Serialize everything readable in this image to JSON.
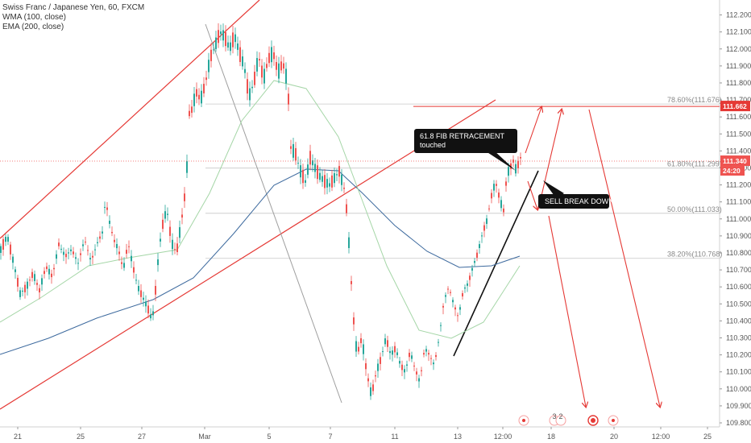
{
  "chart_data": {
    "type": "candlestick",
    "title": "Swiss Franc / Japanese Yen, 60, FXCM",
    "indicators": [
      "WMA (100, close)",
      "EMA (200, close)"
    ],
    "ylim": [
      109.8,
      112.25
    ],
    "y_ticks": [
      "109.800",
      "109.900",
      "110.000",
      "110.100",
      "110.200",
      "110.300",
      "110.400",
      "110.500",
      "110.600",
      "110.700",
      "110.800",
      "110.900",
      "111.000",
      "111.100",
      "111.200",
      "111.300",
      "111.400",
      "111.500",
      "111.600",
      "111.700",
      "111.800",
      "111.900",
      "112.000",
      "112.100",
      "112.200"
    ],
    "x_ticks": [
      "21",
      "25",
      "27",
      "Mar",
      "5",
      "7",
      "11",
      "13",
      "12:00",
      "18",
      "20",
      "12:00",
      "25"
    ],
    "price_tags": {
      "resistance": "111.662",
      "current": "111.340",
      "countdown": "24:20"
    },
    "fib_levels": [
      {
        "label": "78.60%(111.676)",
        "value": 111.676
      },
      {
        "label": "61.80%(111.299)",
        "value": 111.299
      },
      {
        "label": "50.00%(111.033)",
        "value": 111.033
      },
      {
        "label": "38.20%(110.768)",
        "value": 110.768
      }
    ],
    "annotations": {
      "fib_callout": [
        "61.8 FIB RETRACEMENT",
        "touched"
      ],
      "sell_callout": "SELL BREAK DOWN",
      "event_labels": [
        "3",
        "2"
      ]
    },
    "price_path": [
      [
        0,
        110.82
      ],
      [
        8,
        110.9
      ],
      [
        16,
        110.74
      ],
      [
        24,
        110.56
      ],
      [
        32,
        110.6
      ],
      [
        40,
        110.68
      ],
      [
        48,
        110.58
      ],
      [
        56,
        110.72
      ],
      [
        64,
        110.66
      ],
      [
        72,
        110.85
      ],
      [
        80,
        110.78
      ],
      [
        88,
        110.82
      ],
      [
        96,
        110.74
      ],
      [
        104,
        110.88
      ],
      [
        112,
        110.75
      ],
      [
        120,
        110.86
      ],
      [
        126,
        110.92
      ],
      [
        130,
        111.12
      ],
      [
        134,
        111.0
      ],
      [
        140,
        110.88
      ],
      [
        146,
        110.82
      ],
      [
        152,
        110.7
      ],
      [
        158,
        110.86
      ],
      [
        164,
        110.72
      ],
      [
        170,
        110.6
      ],
      [
        176,
        110.54
      ],
      [
        182,
        110.48
      ],
      [
        188,
        110.4
      ],
      [
        192,
        110.58
      ],
      [
        196,
        110.8
      ],
      [
        200,
        110.95
      ],
      [
        206,
        111.06
      ],
      [
        212,
        110.86
      ],
      [
        218,
        110.8
      ],
      [
        224,
        110.98
      ],
      [
        230,
        111.2
      ],
      [
        234,
        111.62
      ],
      [
        238,
        111.65
      ],
      [
        242,
        111.75
      ],
      [
        248,
        111.7
      ],
      [
        254,
        111.8
      ],
      [
        260,
        111.95
      ],
      [
        266,
        112.02
      ],
      [
        272,
        112.1
      ],
      [
        278,
        112.07
      ],
      [
        284,
        112.0
      ],
      [
        290,
        112.08
      ],
      [
        296,
        111.98
      ],
      [
        302,
        111.9
      ],
      [
        308,
        111.72
      ],
      [
        314,
        111.8
      ],
      [
        320,
        111.96
      ],
      [
        326,
        111.82
      ],
      [
        332,
        111.94
      ],
      [
        338,
        111.98
      ],
      [
        344,
        111.86
      ],
      [
        350,
        111.92
      ],
      [
        356,
        111.8
      ],
      [
        360,
        111.42
      ],
      [
        366,
        111.38
      ],
      [
        372,
        111.28
      ],
      [
        378,
        111.22
      ],
      [
        384,
        111.36
      ],
      [
        390,
        111.3
      ],
      [
        396,
        111.25
      ],
      [
        402,
        111.22
      ],
      [
        408,
        111.2
      ],
      [
        414,
        111.24
      ],
      [
        420,
        111.28
      ],
      [
        426,
        111.18
      ],
      [
        430,
        111.02
      ],
      [
        434,
        110.7
      ],
      [
        438,
        110.4
      ],
      [
        442,
        110.2
      ],
      [
        448,
        110.3
      ],
      [
        454,
        110.1
      ],
      [
        460,
        109.96
      ],
      [
        466,
        110.1
      ],
      [
        472,
        110.18
      ],
      [
        478,
        110.3
      ],
      [
        484,
        110.2
      ],
      [
        490,
        110.24
      ],
      [
        496,
        110.14
      ],
      [
        502,
        110.1
      ],
      [
        508,
        110.22
      ],
      [
        514,
        110.12
      ],
      [
        520,
        110.04
      ],
      [
        526,
        110.24
      ],
      [
        532,
        110.2
      ],
      [
        538,
        110.14
      ],
      [
        544,
        110.3
      ],
      [
        550,
        110.52
      ],
      [
        556,
        110.6
      ],
      [
        562,
        110.5
      ],
      [
        568,
        110.42
      ],
      [
        574,
        110.58
      ],
      [
        580,
        110.62
      ],
      [
        586,
        110.72
      ],
      [
        592,
        110.8
      ],
      [
        598,
        110.92
      ],
      [
        604,
        111.0
      ],
      [
        608,
        111.12
      ],
      [
        614,
        111.22
      ],
      [
        620,
        111.1
      ],
      [
        624,
        111.05
      ],
      [
        628,
        111.26
      ],
      [
        632,
        111.3
      ],
      [
        636,
        111.34
      ],
      [
        640,
        111.28
      ],
      [
        644,
        111.36
      ]
    ]
  }
}
